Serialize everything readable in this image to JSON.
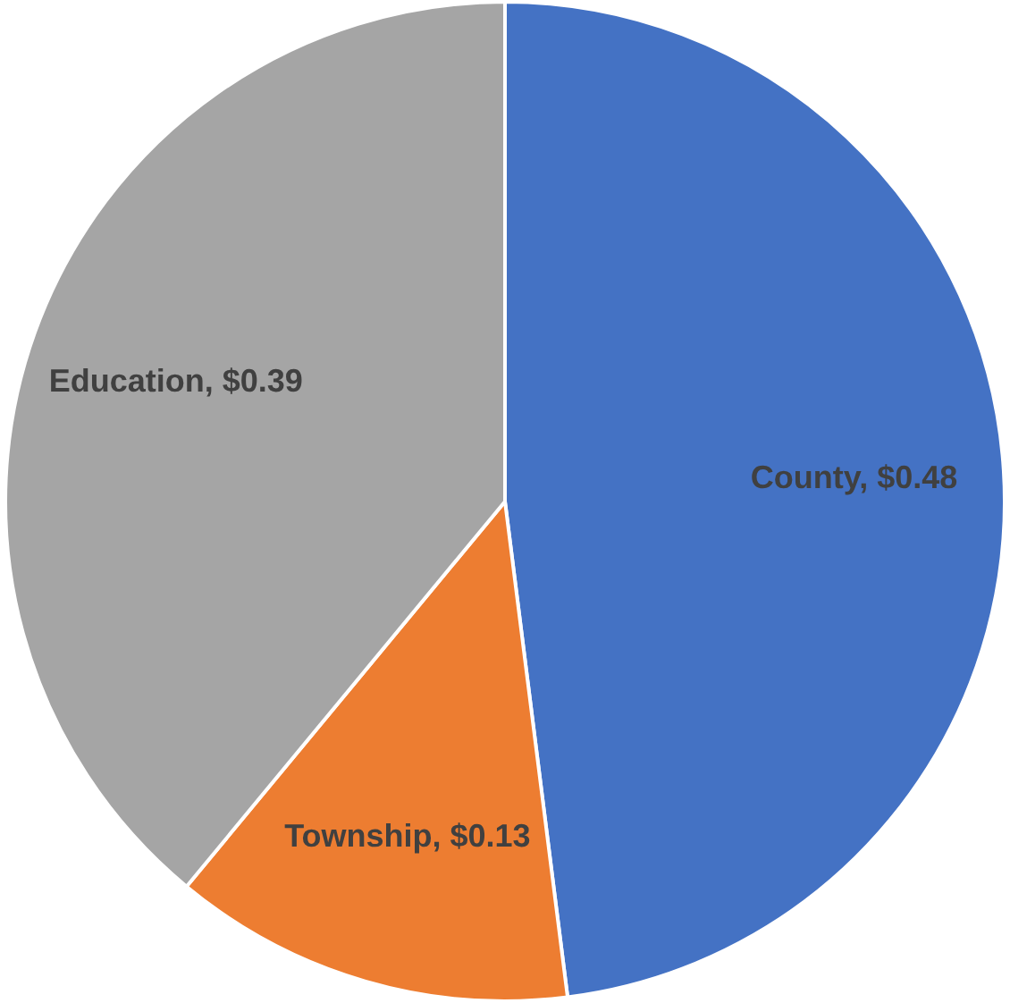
{
  "chart_data": {
    "type": "pie",
    "categories": [
      "County",
      "Township",
      "Education"
    ],
    "values": [
      0.48,
      0.13,
      0.39
    ],
    "value_labels": [
      "$0.48",
      "$0.13",
      "$0.39"
    ],
    "colors": [
      "#4472c4",
      "#ed7d31",
      "#a5a5a5"
    ],
    "legend": false
  }
}
